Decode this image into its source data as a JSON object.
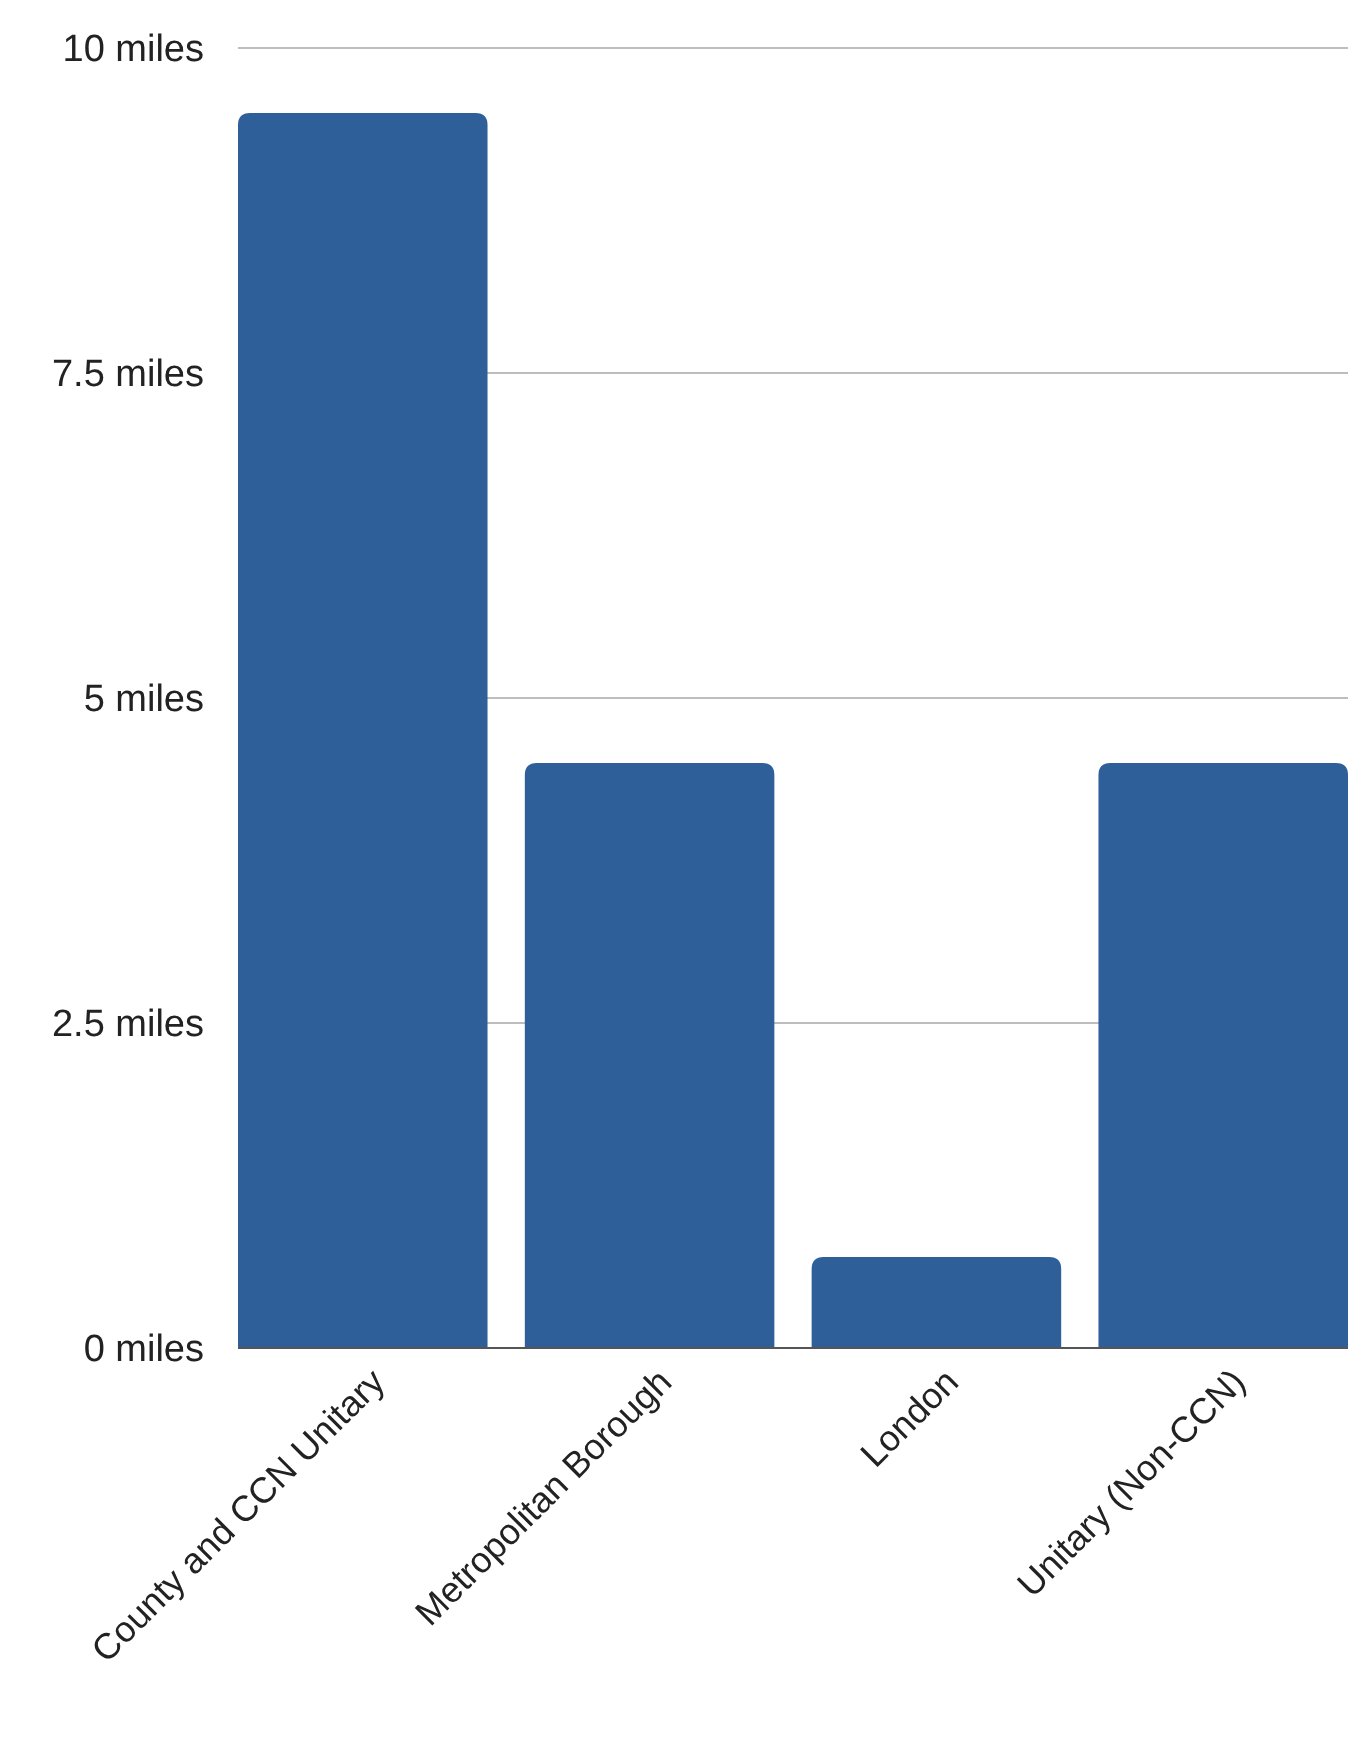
{
  "chart_data": {
    "type": "bar",
    "categories": [
      "County and CCN Unitary",
      "Metropolitan Borough",
      "London",
      "Unitary (Non-CCN)"
    ],
    "values": [
      9.5,
      4.5,
      0.7,
      4.5
    ],
    "color": "#2e5f98",
    "ylim": [
      0,
      10
    ],
    "yticks": [
      {
        "value": 0,
        "label": "0 miles"
      },
      {
        "value": 2.5,
        "label": "2.5 miles"
      },
      {
        "value": 5,
        "label": "5 miles"
      },
      {
        "value": 7.5,
        "label": "7.5 miles"
      },
      {
        "value": 10,
        "label": "10 miles"
      }
    ],
    "grid": "y"
  }
}
